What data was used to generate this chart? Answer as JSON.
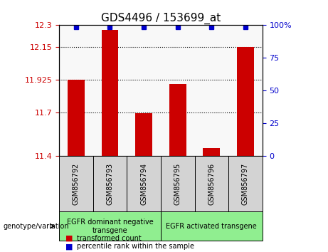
{
  "title": "GDS4496 / 153699_at",
  "samples": [
    "GSM856792",
    "GSM856793",
    "GSM856794",
    "GSM856795",
    "GSM856796",
    "GSM856797"
  ],
  "bar_values": [
    11.925,
    12.27,
    11.695,
    11.895,
    11.455,
    12.15
  ],
  "percentile_values": [
    100,
    100,
    100,
    100,
    100,
    100
  ],
  "percentile_y": [
    12.285,
    12.285,
    12.285,
    12.285,
    12.285,
    12.285
  ],
  "ylim": [
    11.4,
    12.3
  ],
  "yticks_left": [
    11.4,
    11.7,
    11.925,
    12.15,
    12.3
  ],
  "ytick_labels_left": [
    "11.4",
    "11.7",
    "11.925",
    "12.15",
    "12.3"
  ],
  "yticks_right": [
    0,
    25,
    50,
    75,
    100
  ],
  "ytick_labels_right": [
    "0",
    "25",
    "50",
    "75",
    "100%"
  ],
  "dotted_lines": [
    11.7,
    11.925,
    12.15
  ],
  "bar_color": "#cc0000",
  "dot_color": "#0000cc",
  "groups": [
    {
      "label": "EGFR dominant negative\ntransgene",
      "samples": [
        0,
        1,
        2
      ],
      "color": "#90ee90"
    },
    {
      "label": "EGFR activated transgene",
      "samples": [
        3,
        4,
        5
      ],
      "color": "#90ee90"
    }
  ],
  "legend_red_label": "transformed count",
  "legend_blue_label": "percentile rank within the sample",
  "genotype_label": "genotype/variation",
  "xlabel_color_left": "#cc0000",
  "xlabel_color_right": "#0000cc",
  "background_color": "#ffffff"
}
